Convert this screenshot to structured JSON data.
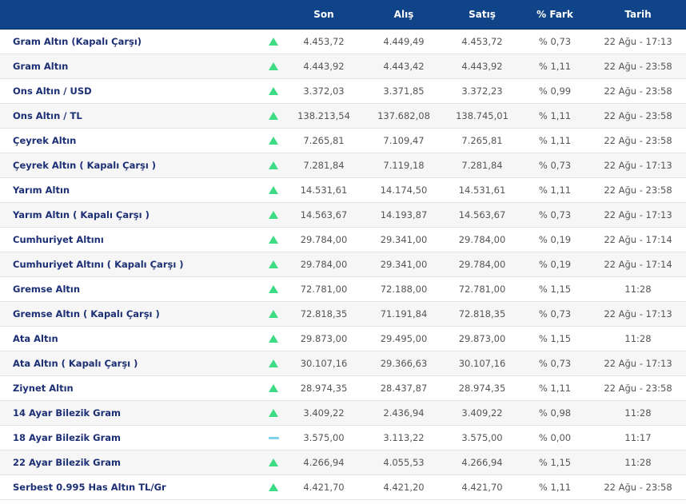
{
  "header": {
    "son": "Son",
    "alis": "Alış",
    "satis": "Satış",
    "fark": "% Fark",
    "tarih": "Tarih"
  },
  "rows": [
    {
      "name": "Gram Altın (Kapalı Çarşı)",
      "trend": "up",
      "son": "4.453,72",
      "alis": "4.449,49",
      "satis": "4.453,72",
      "fark": "% 0,73",
      "tarih": "22 Ağu - 17:13"
    },
    {
      "name": "Gram Altın",
      "trend": "up",
      "son": "4.443,92",
      "alis": "4.443,42",
      "satis": "4.443,92",
      "fark": "% 1,11",
      "tarih": "22 Ağu - 23:58"
    },
    {
      "name": "Ons Altın / USD",
      "trend": "up",
      "son": "3.372,03",
      "alis": "3.371,85",
      "satis": "3.372,23",
      "fark": "% 0,99",
      "tarih": "22 Ağu - 23:58"
    },
    {
      "name": "Ons Altın / TL",
      "trend": "up",
      "son": "138.213,54",
      "alis": "137.682,08",
      "satis": "138.745,01",
      "fark": "% 1,11",
      "tarih": "22 Ağu - 23:58"
    },
    {
      "name": "Çeyrek Altın",
      "trend": "up",
      "son": "7.265,81",
      "alis": "7.109,47",
      "satis": "7.265,81",
      "fark": "% 1,11",
      "tarih": "22 Ağu - 23:58"
    },
    {
      "name": "Çeyrek Altın ( Kapalı Çarşı )",
      "trend": "up",
      "son": "7.281,84",
      "alis": "7.119,18",
      "satis": "7.281,84",
      "fark": "% 0,73",
      "tarih": "22 Ağu - 17:13"
    },
    {
      "name": "Yarım Altın",
      "trend": "up",
      "son": "14.531,61",
      "alis": "14.174,50",
      "satis": "14.531,61",
      "fark": "% 1,11",
      "tarih": "22 Ağu - 23:58"
    },
    {
      "name": "Yarım Altın ( Kapalı Çarşı )",
      "trend": "up",
      "son": "14.563,67",
      "alis": "14.193,87",
      "satis": "14.563,67",
      "fark": "% 0,73",
      "tarih": "22 Ağu - 17:13"
    },
    {
      "name": "Cumhuriyet Altını",
      "trend": "up",
      "son": "29.784,00",
      "alis": "29.341,00",
      "satis": "29.784,00",
      "fark": "% 0,19",
      "tarih": "22 Ağu - 17:14"
    },
    {
      "name": "Cumhuriyet Altını ( Kapalı Çarşı )",
      "trend": "up",
      "son": "29.784,00",
      "alis": "29.341,00",
      "satis": "29.784,00",
      "fark": "% 0,19",
      "tarih": "22 Ağu - 17:14"
    },
    {
      "name": "Gremse Altın",
      "trend": "up",
      "son": "72.781,00",
      "alis": "72.188,00",
      "satis": "72.781,00",
      "fark": "% 1,15",
      "tarih": "11:28"
    },
    {
      "name": "Gremse Altın ( Kapalı Çarşı )",
      "trend": "up",
      "son": "72.818,35",
      "alis": "71.191,84",
      "satis": "72.818,35",
      "fark": "% 0,73",
      "tarih": "22 Ağu - 17:13"
    },
    {
      "name": "Ata Altın",
      "trend": "up",
      "son": "29.873,00",
      "alis": "29.495,00",
      "satis": "29.873,00",
      "fark": "% 1,15",
      "tarih": "11:28"
    },
    {
      "name": "Ata Altın ( Kapalı Çarşı )",
      "trend": "up",
      "son": "30.107,16",
      "alis": "29.366,63",
      "satis": "30.107,16",
      "fark": "% 0,73",
      "tarih": "22 Ağu - 17:13"
    },
    {
      "name": "Ziynet Altın",
      "trend": "up",
      "son": "28.974,35",
      "alis": "28.437,87",
      "satis": "28.974,35",
      "fark": "% 1,11",
      "tarih": "22 Ağu - 23:58"
    },
    {
      "name": "14 Ayar Bilezik Gram",
      "trend": "up",
      "son": "3.409,22",
      "alis": "2.436,94",
      "satis": "3.409,22",
      "fark": "% 0,98",
      "tarih": "11:28"
    },
    {
      "name": "18 Ayar Bilezik Gram",
      "trend": "flat",
      "son": "3.575,00",
      "alis": "3.113,22",
      "satis": "3.575,00",
      "fark": "% 0,00",
      "tarih": "11:17"
    },
    {
      "name": "22 Ayar Bilezik Gram",
      "trend": "up",
      "son": "4.266,94",
      "alis": "4.055,53",
      "satis": "4.266,94",
      "fark": "% 1,15",
      "tarih": "11:28"
    },
    {
      "name": "Serbest 0.995 Has Altın TL/Gr",
      "trend": "up",
      "son": "4.421,70",
      "alis": "4.421,20",
      "satis": "4.421,70",
      "fark": "% 1,11",
      "tarih": "22 Ağu - 23:58"
    }
  ],
  "colors": {
    "header_bg": "#0f4489",
    "name_text": "#1c2f74",
    "trend_up": "#3ddc84",
    "trend_flat": "#7fd0ea"
  },
  "icons": {
    "up": "triangle-up-icon",
    "flat": "dash-icon"
  }
}
